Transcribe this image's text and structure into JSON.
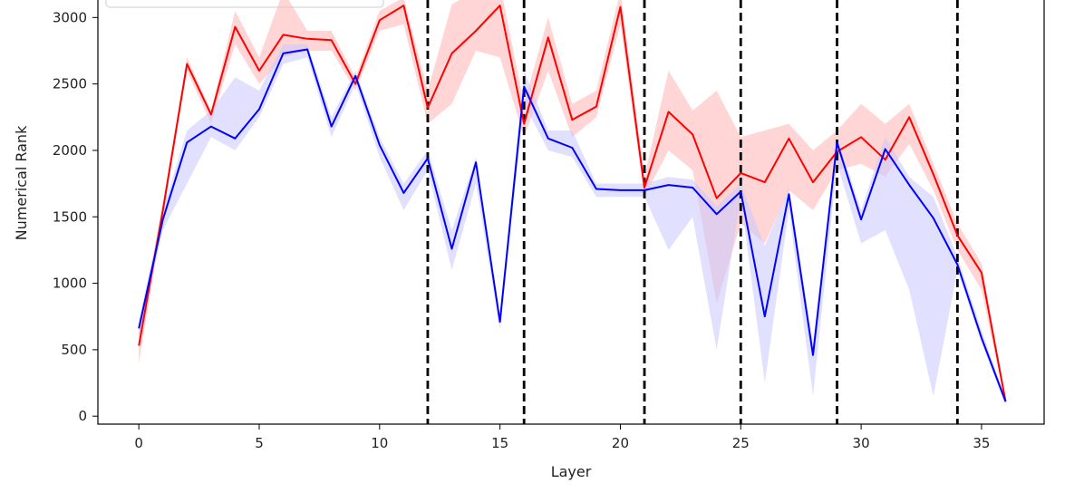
{
  "chart_data": {
    "type": "line",
    "xlabel": "Layer",
    "ylabel": "Numerical Rank",
    "xlim": [
      -1.7,
      37.6
    ],
    "ylim": [
      -60,
      3200
    ],
    "xticks": [
      0,
      5,
      10,
      15,
      20,
      25,
      30,
      35
    ],
    "yticks": [
      0,
      500,
      1000,
      1500,
      2000,
      2500,
      3000
    ],
    "vlines": [
      12,
      16,
      21,
      25,
      29,
      34
    ],
    "grid": false,
    "legend": "top-left (partially visible)",
    "x": [
      0,
      1,
      2,
      3,
      4,
      5,
      6,
      7,
      8,
      9,
      10,
      11,
      12,
      13,
      14,
      15,
      16,
      17,
      18,
      19,
      20,
      21,
      22,
      23,
      24,
      25,
      26,
      27,
      28,
      29,
      30,
      31,
      32,
      33,
      34,
      35,
      36
    ],
    "series": [
      {
        "color": "#ff0000",
        "band_color": "#ffb3b3",
        "values": [
          530,
          1550,
          2650,
          2270,
          2930,
          2600,
          2870,
          2840,
          2830,
          2500,
          2980,
          3090,
          2320,
          2730,
          2900,
          3090,
          2200,
          2850,
          2230,
          2330,
          3080,
          1720,
          2290,
          2120,
          1640,
          1830,
          1760,
          2090,
          1760,
          1990,
          2100,
          1930,
          2250,
          1820,
          1360,
          1080,
          110
        ],
        "lower": [
          400,
          1500,
          2600,
          2200,
          2800,
          2500,
          2700,
          2750,
          2750,
          2450,
          2900,
          2950,
          2200,
          2350,
          2750,
          2700,
          2100,
          2600,
          2100,
          2250,
          2950,
          1650,
          2000,
          1850,
          850,
          1450,
          1300,
          1700,
          1550,
          1850,
          1900,
          1800,
          2050,
          1700,
          1250,
          950,
          90
        ],
        "upper": [
          650,
          1600,
          2700,
          2300,
          3050,
          2700,
          3200,
          2900,
          2900,
          2550,
          3050,
          3150,
          2450,
          3100,
          3200,
          3250,
          2350,
          3000,
          2350,
          2450,
          3200,
          1800,
          2600,
          2300,
          2450,
          2100,
          2150,
          2200,
          2000,
          2150,
          2350,
          2200,
          2350,
          1900,
          1450,
          1150,
          130
        ]
      },
      {
        "color": "#0000ff",
        "band_color": "#c8c8ff",
        "values": [
          660,
          1480,
          2060,
          2180,
          2090,
          2310,
          2730,
          2760,
          2180,
          2560,
          2040,
          1680,
          1940,
          1260,
          1910,
          710,
          2480,
          2090,
          2020,
          1710,
          1700,
          1700,
          1740,
          1720,
          1520,
          1690,
          750,
          1670,
          460,
          2060,
          1480,
          2010,
          1740,
          1490,
          1140,
          590,
          110
        ],
        "lower": [
          600,
          1400,
          1750,
          2100,
          2000,
          2250,
          2650,
          2700,
          2100,
          2500,
          1950,
          1550,
          1850,
          1100,
          1750,
          650,
          2350,
          2000,
          1950,
          1650,
          1650,
          1650,
          1250,
          1500,
          500,
          1650,
          250,
          1550,
          150,
          1900,
          1300,
          1400,
          950,
          150,
          1100,
          550,
          90
        ],
        "upper": [
          720,
          1550,
          2150,
          2300,
          2550,
          2450,
          2800,
          2800,
          2250,
          2600,
          2100,
          1750,
          2000,
          1400,
          1950,
          760,
          2600,
          2150,
          2150,
          1750,
          1750,
          1750,
          1800,
          1780,
          1580,
          1750,
          1280,
          1720,
          550,
          2100,
          1550,
          2100,
          1800,
          1650,
          1200,
          650,
          130
        ]
      }
    ]
  }
}
